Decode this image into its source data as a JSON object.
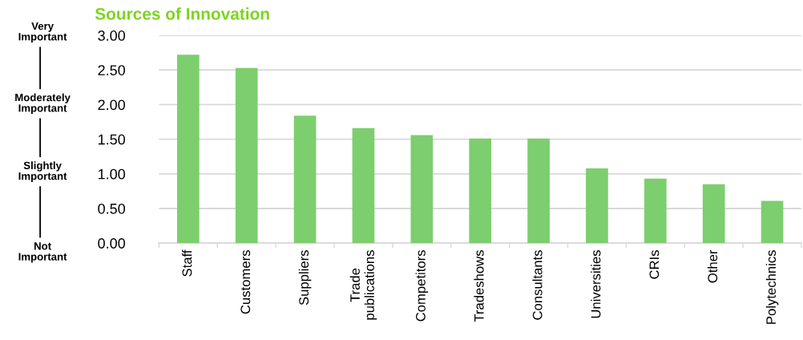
{
  "chart_data": {
    "type": "bar",
    "title": "Sources of Innovation",
    "categories": [
      "Staff",
      "Customers",
      "Suppliers",
      "Trade\npublications",
      "Competitors",
      "Tradeshows",
      "Consultants",
      "Universities",
      "CRIs",
      "Other",
      "Polytechnics"
    ],
    "values": [
      2.72,
      2.53,
      1.84,
      1.66,
      1.56,
      1.51,
      1.51,
      1.08,
      0.93,
      0.85,
      0.61
    ],
    "color": "#7dce6e",
    "ylim": [
      0,
      3
    ],
    "yticks": [
      {
        "value": 0,
        "label": "0.00"
      },
      {
        "value": 0.5,
        "label": "0.50"
      },
      {
        "value": 1,
        "label": "1.00"
      },
      {
        "value": 1.5,
        "label": "1.50"
      },
      {
        "value": 2,
        "label": "2.00"
      },
      {
        "value": 2.5,
        "label": "2.50"
      },
      {
        "value": 3,
        "label": "3.00"
      }
    ],
    "grid": "y",
    "annotations": [
      "Very\nImportant",
      "Moderately\nImportant",
      "Slightly\nImportant",
      "Not\nImportant"
    ]
  }
}
